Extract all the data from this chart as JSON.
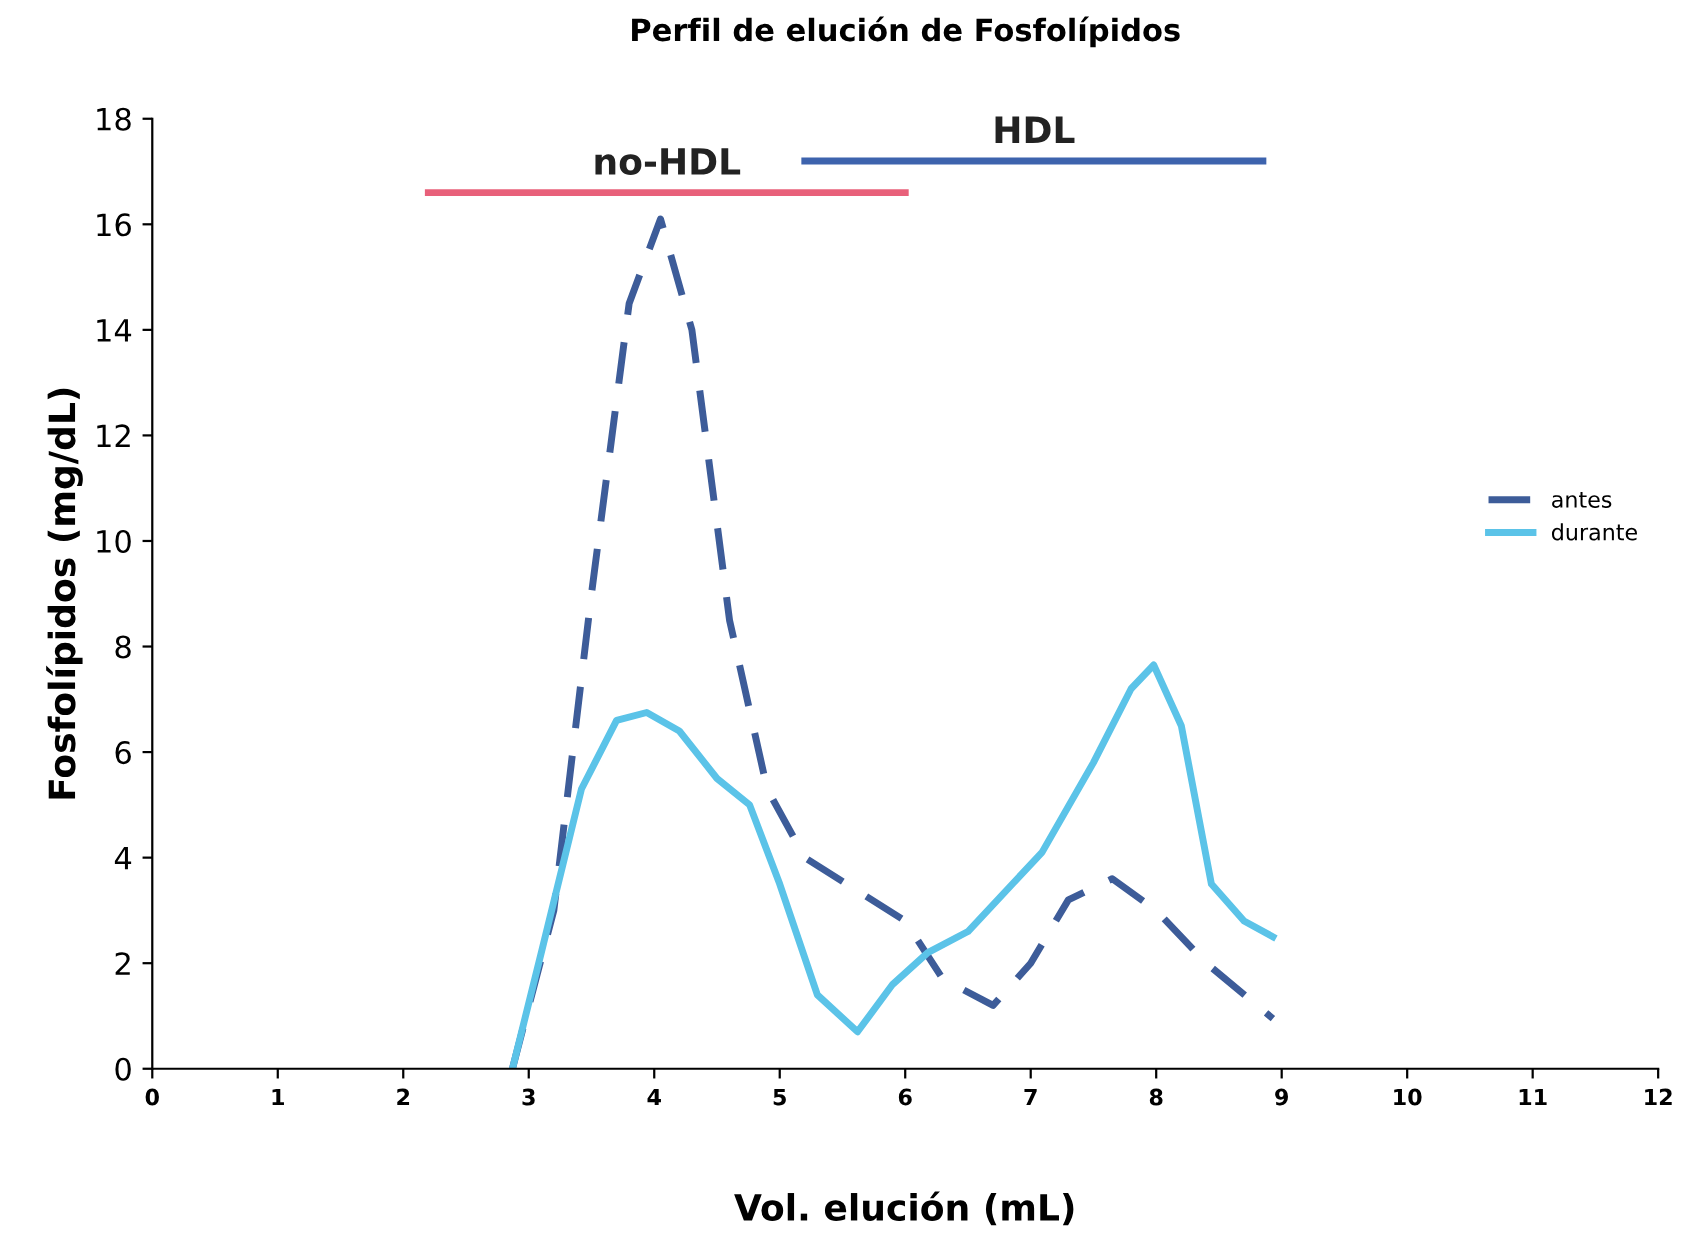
{
  "chart_data": {
    "type": "line",
    "title": "Perfil de elución de Fosfolípidos",
    "xlabel": "Vol. elución (mL)",
    "ylabel": "Fosfolípidos (mg/dL)",
    "xlim": [
      0,
      12
    ],
    "xticks": [
      0,
      1,
      2,
      3,
      4,
      5,
      6,
      7,
      8,
      9,
      10,
      11,
      12
    ],
    "ylim": [
      0,
      18
    ],
    "yticks": [
      0,
      2,
      4,
      6,
      8,
      10,
      12,
      14,
      16,
      18
    ],
    "legend": "right",
    "grid": false,
    "series": [
      {
        "name": "antes",
        "color": "#3d5c99",
        "line_style": "dashed",
        "x": [
          2.87,
          3.2,
          3.5,
          3.8,
          4.05,
          4.3,
          4.6,
          4.9,
          5.2,
          5.6,
          6.0,
          6.3,
          6.7,
          7.0,
          7.3,
          7.65,
          8.0,
          8.4,
          8.93
        ],
        "values": [
          0,
          3,
          9,
          14.5,
          16.1,
          14,
          8.5,
          5.3,
          4.0,
          3.4,
          2.8,
          1.7,
          1.2,
          2.0,
          3.2,
          3.6,
          3.0,
          2.0,
          0.95
        ]
      },
      {
        "name": "durante",
        "color": "#5bc3e8",
        "line_style": "solid",
        "x": [
          2.87,
          3.1,
          3.42,
          3.7,
          3.94,
          4.2,
          4.5,
          4.76,
          5.0,
          5.3,
          5.62,
          5.9,
          6.18,
          6.5,
          7.09,
          7.5,
          7.8,
          7.98,
          8.2,
          8.44,
          8.7,
          8.93
        ],
        "values": [
          0,
          2.2,
          5.3,
          6.6,
          6.75,
          6.4,
          5.5,
          5.0,
          3.5,
          1.4,
          0.7,
          1.6,
          2.2,
          2.6,
          4.1,
          5.8,
          7.2,
          7.65,
          6.5,
          3.5,
          2.8,
          2.5
        ]
      },
      {
        "name": "no-HDL",
        "color": "#e8607a",
        "line_style": "solid",
        "x": [
          2.2,
          6.0
        ],
        "values": [
          16.6,
          16.6
        ]
      },
      {
        "name": "HDL",
        "color": "#3d63ad",
        "line_style": "solid",
        "x": [
          5.2,
          8.85
        ],
        "values": [
          17.2,
          17.2
        ]
      }
    ]
  }
}
